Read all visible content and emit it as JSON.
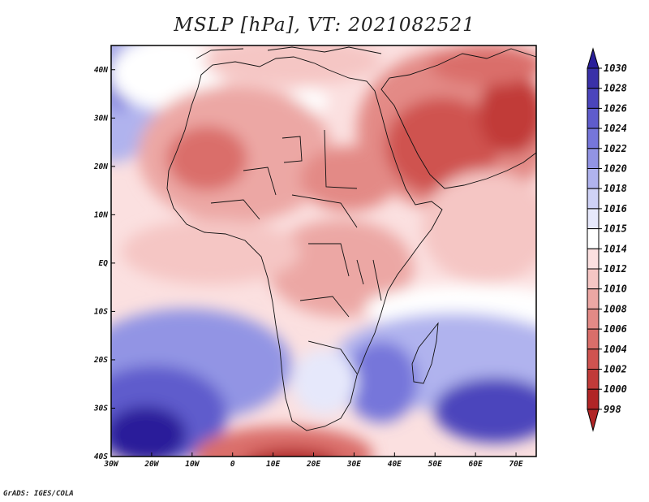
{
  "title": "MSLP [hPa], VT: 2021082521",
  "credit": "GrADS: IGES/COLA",
  "map": {
    "variable": "Mean sea level pressure",
    "units": "hPa",
    "valid_time": "2021082521",
    "lon_range": [
      -30,
      75
    ],
    "lat_range": [
      -40,
      45
    ],
    "x_ticks": [
      {
        "value": -30,
        "label": "30W"
      },
      {
        "value": -20,
        "label": "20W"
      },
      {
        "value": -10,
        "label": "10W"
      },
      {
        "value": 0,
        "label": "0"
      },
      {
        "value": 10,
        "label": "10E"
      },
      {
        "value": 20,
        "label": "20E"
      },
      {
        "value": 30,
        "label": "30E"
      },
      {
        "value": 40,
        "label": "40E"
      },
      {
        "value": 50,
        "label": "50E"
      },
      {
        "value": 60,
        "label": "60E"
      },
      {
        "value": 70,
        "label": "70E"
      }
    ],
    "y_ticks": [
      {
        "value": 40,
        "label": "40N"
      },
      {
        "value": 30,
        "label": "30N"
      },
      {
        "value": 20,
        "label": "20N"
      },
      {
        "value": 10,
        "label": "10N"
      },
      {
        "value": 0,
        "label": "EQ"
      },
      {
        "value": -10,
        "label": "10S"
      },
      {
        "value": -20,
        "label": "20S"
      },
      {
        "value": -30,
        "label": "30S"
      },
      {
        "value": -40,
        "label": "40S"
      }
    ]
  },
  "colorbar": {
    "levels": [
      {
        "label": "1030",
        "color": "#2a1f9a"
      },
      {
        "label": "1028",
        "color": "#3a31a8"
      },
      {
        "label": "1026",
        "color": "#4b45bc"
      },
      {
        "label": "1024",
        "color": "#5f5ccc"
      },
      {
        "label": "1022",
        "color": "#7676da"
      },
      {
        "label": "1020",
        "color": "#9294e4"
      },
      {
        "label": "1018",
        "color": "#b0b3ee"
      },
      {
        "label": "1016",
        "color": "#cfd2f6"
      },
      {
        "label": "1015",
        "color": "#e6e8fb"
      },
      {
        "label": "1014",
        "color": "#ffffff"
      },
      {
        "label": "1012",
        "color": "#fbe0e0"
      },
      {
        "label": "1010",
        "color": "#f5c6c4"
      },
      {
        "label": "1008",
        "color": "#eca7a4"
      },
      {
        "label": "1006",
        "color": "#e38a86"
      },
      {
        "label": "1004",
        "color": "#da6e6a"
      },
      {
        "label": "1002",
        "color": "#cf5350"
      },
      {
        "label": "1000",
        "color": "#c13b39"
      },
      {
        "label": "998",
        "color": "#b12526"
      }
    ]
  }
}
